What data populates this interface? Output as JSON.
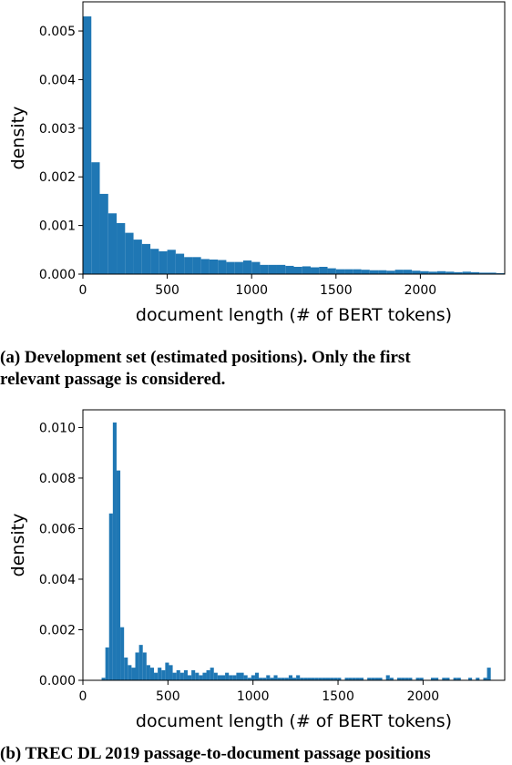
{
  "captions": {
    "a": "(a) Development set (estimated positions). Only the first",
    "a_line2": "relevant passage is considered.",
    "b": "(b) TREC DL 2019 passage-to-document passage positions"
  },
  "colors": {
    "bars": "#1f77b4"
  },
  "chart_data": [
    {
      "type": "bar",
      "xlabel": "document length (# of BERT tokens)",
      "ylabel": "density",
      "xlim": [
        0,
        2500
      ],
      "ylim": [
        0,
        0.0056
      ],
      "xticks": [
        "0",
        "500",
        "1000",
        "1500",
        "2000"
      ],
      "yticks": [
        "0.000",
        "0.001",
        "0.002",
        "0.003",
        "0.004",
        "0.005"
      ],
      "grid": false,
      "bin_width": 50,
      "x": [
        0,
        50,
        100,
        150,
        200,
        250,
        300,
        350,
        400,
        450,
        500,
        550,
        600,
        650,
        700,
        750,
        800,
        850,
        900,
        950,
        1000,
        1050,
        1100,
        1150,
        1200,
        1250,
        1300,
        1350,
        1400,
        1450,
        1500,
        1550,
        1600,
        1650,
        1700,
        1750,
        1800,
        1850,
        1900,
        1950,
        2000,
        2050,
        2100,
        2150,
        2200,
        2250,
        2300,
        2350,
        2400,
        2450
      ],
      "values": [
        0.0053,
        0.0023,
        0.00165,
        0.00125,
        0.00105,
        0.00085,
        0.00071,
        0.00062,
        0.00052,
        0.00047,
        0.0005,
        0.00042,
        0.00035,
        0.00035,
        0.00031,
        0.0003,
        0.00029,
        0.00025,
        0.00025,
        0.00028,
        0.00025,
        0.00019,
        0.00019,
        0.00019,
        0.00017,
        0.00015,
        0.00016,
        0.00014,
        0.00015,
        0.00012,
        0.0001,
        0.0001,
        0.0001,
        9e-05,
        8e-05,
        8e-05,
        7e-05,
        9e-05,
        9e-05,
        7e-05,
        6e-05,
        5e-05,
        6e-05,
        5e-05,
        4e-05,
        5e-05,
        4e-05,
        3e-05,
        3e-05,
        2e-05
      ]
    },
    {
      "type": "bar",
      "xlabel": "document length (# of BERT tokens)",
      "ylabel": "density",
      "xlim": [
        0,
        2480
      ],
      "ylim": [
        0,
        0.0107
      ],
      "xticks": [
        "0",
        "500",
        "1000",
        "1500",
        "2000"
      ],
      "yticks": [
        "0.000",
        "0.002",
        "0.004",
        "0.006",
        "0.008",
        "0.010"
      ],
      "grid": false,
      "bin_width": 22,
      "x": [
        110,
        132,
        154,
        176,
        198,
        220,
        242,
        264,
        286,
        308,
        330,
        352,
        374,
        396,
        418,
        440,
        462,
        484,
        506,
        528,
        550,
        572,
        594,
        616,
        638,
        660,
        682,
        704,
        726,
        748,
        770,
        792,
        814,
        836,
        858,
        880,
        902,
        924,
        946,
        968,
        990,
        1012,
        1034,
        1056,
        1078,
        1100,
        1122,
        1144,
        1166,
        1188,
        1210,
        1232,
        1254,
        1276,
        1298,
        1320,
        1342,
        1364,
        1386,
        1408,
        1430,
        1452,
        1474,
        1496,
        1518,
        1540,
        1562,
        1584,
        1606,
        1628,
        1650,
        1672,
        1694,
        1716,
        1738,
        1760,
        1782,
        1804,
        1826,
        1848,
        1870,
        1892,
        1914,
        1936,
        1958,
        1980,
        2002,
        2024,
        2046,
        2068,
        2090,
        2112,
        2134,
        2156,
        2178,
        2200,
        2222,
        2244,
        2266,
        2288,
        2310,
        2332,
        2354,
        2376
      ],
      "values": [
        0.0001,
        0.0013,
        0.0066,
        0.0102,
        0.0083,
        0.0021,
        0.0009,
        0.0006,
        0.0005,
        0.0011,
        0.0014,
        0.0011,
        0.0006,
        0.0005,
        0.0003,
        0.0005,
        0.0004,
        0.0007,
        0.0006,
        0.0003,
        0.0004,
        0.0003,
        0.0004,
        0.0002,
        0.0004,
        0.0003,
        0.0002,
        0.0003,
        0.0004,
        0.0005,
        0.0003,
        0.0002,
        0.0002,
        0.0003,
        0.0002,
        0.0002,
        0.0003,
        0.0003,
        0.0002,
        0.0001,
        0.0002,
        0.0003,
        0.0001,
        0.0001,
        0.0002,
        0.0001,
        0.0002,
        0.0001,
        0.0001,
        0.0001,
        0.0002,
        0.0001,
        0.0002,
        0.0001,
        0.0001,
        0.0001,
        0.0001,
        0.0001,
        0.0001,
        0.0001,
        0.0001,
        0.0001,
        0.0001,
        0.0001,
        0,
        0.0001,
        0.0001,
        0.0001,
        0.0001,
        0.0001,
        0,
        0.0001,
        0.0001,
        0.0001,
        0.0001,
        0,
        0.0002,
        0.0001,
        0,
        0.0001,
        0.0001,
        0.0001,
        0.0001,
        0,
        0.0001,
        0.0001,
        0,
        0,
        0.0001,
        0.0001,
        0,
        0.0001,
        0.0001,
        0,
        0.0001,
        0.0001,
        0,
        0,
        0.0001,
        0,
        0.0001,
        0,
        0.0001,
        0.0005
      ]
    }
  ]
}
